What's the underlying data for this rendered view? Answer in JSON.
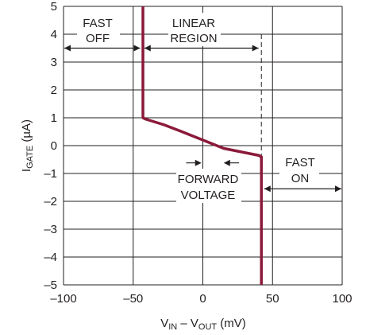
{
  "chart_data": {
    "type": "line",
    "title": "",
    "xlabel": {
      "main": "V",
      "sub1": "IN",
      "mid": " – V",
      "sub2": "OUT",
      "unit": " (mV)"
    },
    "ylabel": {
      "main": "I",
      "sub": "GATE",
      "unit": " (µA)"
    },
    "xlim": [
      -100,
      100
    ],
    "ylim": [
      -5,
      5
    ],
    "x_ticks": [
      -100,
      -50,
      0,
      50,
      100
    ],
    "x_tick_labels": [
      "–100",
      "–50",
      "0",
      "50",
      "100"
    ],
    "y_ticks": [
      5,
      4,
      3,
      2,
      1,
      0,
      -1,
      -2,
      -3,
      -4,
      -5
    ],
    "y_tick_labels": [
      "5",
      "4",
      "3",
      "2",
      "1",
      "0",
      "–1",
      "–2",
      "–3",
      "–4",
      "–5"
    ],
    "grid": true,
    "line_color": "#8b1a3a",
    "series": [
      {
        "name": "",
        "x": [
          -43,
          -43,
          -41,
          -28,
          -15,
          -5,
          5,
          15,
          25,
          40,
          42,
          42
        ],
        "y": [
          5,
          1,
          0.95,
          0.75,
          0.5,
          0.3,
          0.1,
          -0.1,
          -0.2,
          -0.35,
          -0.4,
          -5
        ]
      }
    ],
    "dashed_marker_x": 42,
    "annotations": [
      {
        "lines": [
          "FAST",
          "OFF"
        ]
      },
      {
        "lines": [
          "LINEAR",
          "REGION"
        ]
      },
      {
        "lines": [
          "FORWARD",
          "VOLTAGE"
        ]
      },
      {
        "lines": [
          "FAST",
          "ON"
        ]
      }
    ]
  }
}
